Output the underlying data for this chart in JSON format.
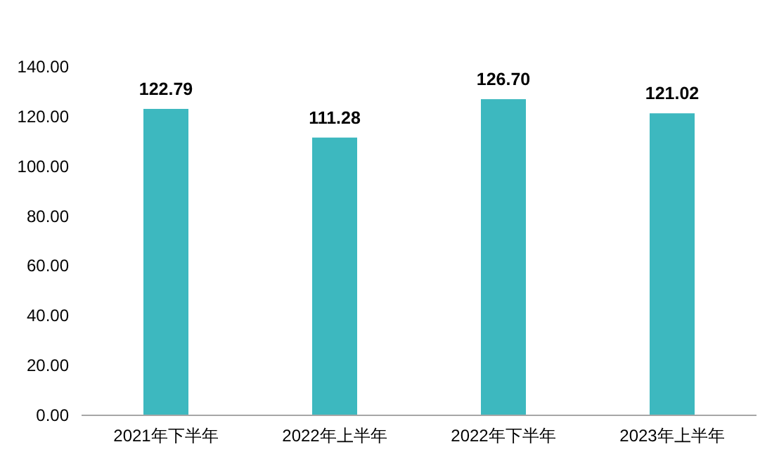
{
  "chart_data": {
    "type": "bar",
    "categories": [
      "2021年下半年",
      "2022年上半年",
      "2022年下半年",
      "2023年上半年"
    ],
    "values": [
      122.79,
      111.28,
      126.7,
      121.02
    ],
    "value_labels": [
      "122.79",
      "111.28",
      "126.70",
      "121.02"
    ],
    "color": "#3db8bf",
    "ylim": [
      0,
      140
    ],
    "yticks": [
      {
        "value": 0,
        "label": "0.00"
      },
      {
        "value": 20,
        "label": "20.00"
      },
      {
        "value": 40,
        "label": "40.00"
      },
      {
        "value": 60,
        "label": "60.00"
      },
      {
        "value": 80,
        "label": "80.00"
      },
      {
        "value": 100,
        "label": "100.00"
      },
      {
        "value": 120,
        "label": "120.00"
      },
      {
        "value": 140,
        "label": "140.00"
      }
    ],
    "grid": false
  }
}
